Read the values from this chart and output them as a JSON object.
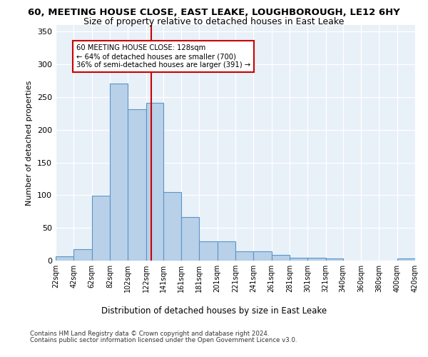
{
  "title1": "60, MEETING HOUSE CLOSE, EAST LEAKE, LOUGHBOROUGH, LE12 6HY",
  "title2": "Size of property relative to detached houses in East Leake",
  "xlabel": "Distribution of detached houses by size in East Leake",
  "ylabel": "Number of detached properties",
  "bins": [
    22,
    42,
    62,
    82,
    102,
    122,
    141,
    161,
    181,
    201,
    221,
    241,
    261,
    281,
    301,
    321,
    340,
    360,
    380,
    400,
    420
  ],
  "bar_heights": [
    7,
    18,
    99,
    270,
    231,
    241,
    105,
    67,
    30,
    30,
    14,
    14,
    9,
    4,
    4,
    3,
    0,
    0,
    0,
    3
  ],
  "bar_color": "#b8d0e8",
  "bar_edge_color": "#5a96c8",
  "property_size": 128,
  "vline_color": "#cc0000",
  "annotation_text": "60 MEETING HOUSE CLOSE: 128sqm\n← 64% of detached houses are smaller (700)\n36% of semi-detached houses are larger (391) →",
  "annotation_box_color": "white",
  "annotation_box_edge": "#cc0000",
  "ylim": [
    0,
    360
  ],
  "yticks": [
    0,
    50,
    100,
    150,
    200,
    250,
    300,
    350
  ],
  "footer_line1": "Contains HM Land Registry data © Crown copyright and database right 2024.",
  "footer_line2": "Contains public sector information licensed under the Open Government Licence v3.0.",
  "bg_color": "#e8f0f8",
  "grid_color": "#ffffff",
  "title1_fontsize": 9.5,
  "title2_fontsize": 9,
  "tick_labels": [
    "22sqm",
    "42sqm",
    "62sqm",
    "82sqm",
    "102sqm",
    "122sqm",
    "141sqm",
    "161sqm",
    "181sqm",
    "201sqm",
    "221sqm",
    "241sqm",
    "261sqm",
    "281sqm",
    "301sqm",
    "321sqm",
    "340sqm",
    "360sqm",
    "380sqm",
    "400sqm",
    "420sqm"
  ]
}
